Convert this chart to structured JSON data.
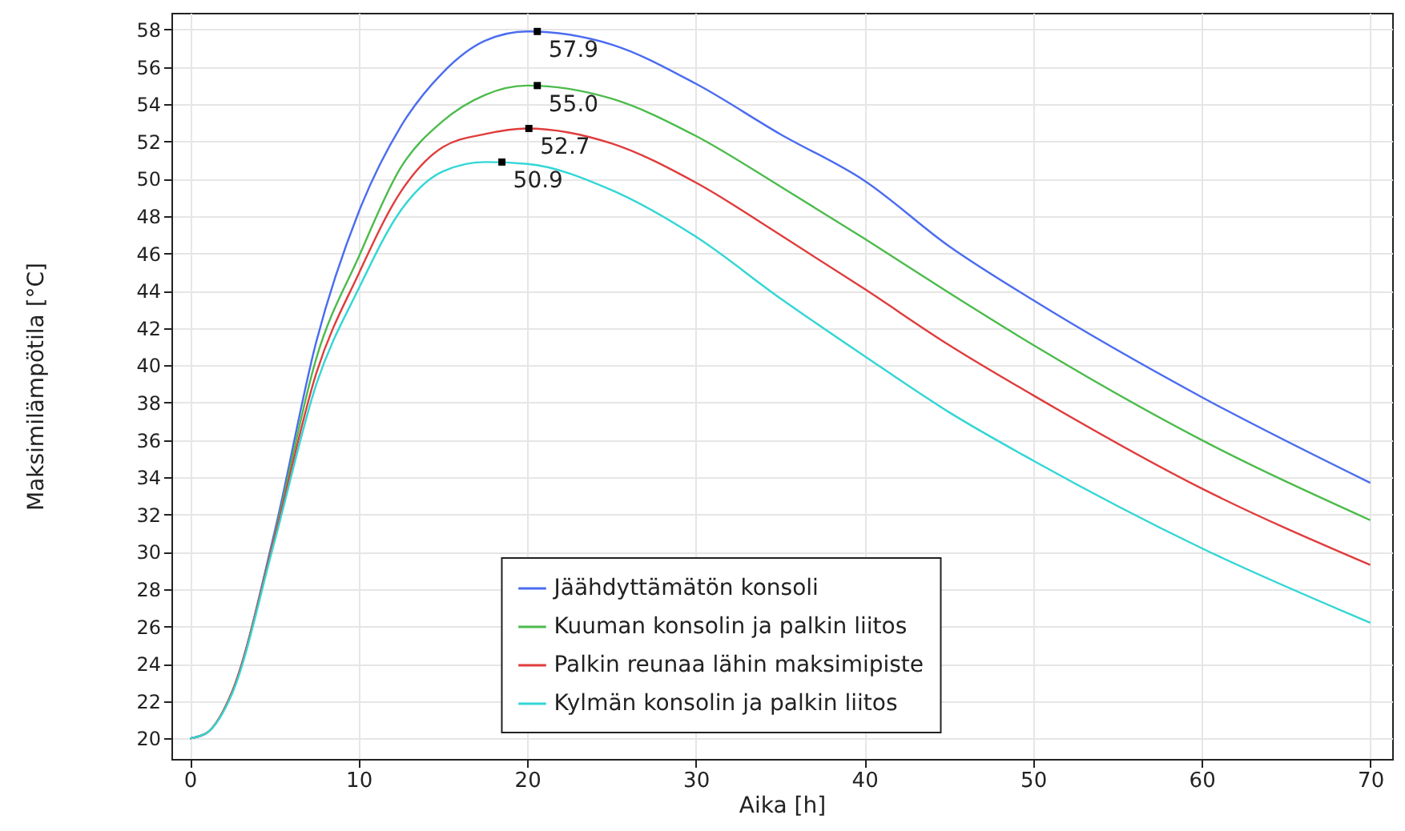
{
  "chart_data": {
    "type": "line",
    "xlabel": "Aika [h]",
    "ylabel": "Maksimilämpötila [°C]",
    "x": [
      0,
      1,
      2.5,
      5,
      7.5,
      10,
      12.5,
      15,
      17.5,
      20,
      25,
      30,
      35,
      40,
      45,
      50,
      60,
      70
    ],
    "series": [
      {
        "name": "Jäähdyttämätön konsoli",
        "color": "#4a6cf0",
        "values": [
          20,
          20.3,
          22.5,
          31.0,
          41.3,
          48.2,
          52.8,
          55.7,
          57.4,
          57.9,
          57.2,
          55.1,
          52.4,
          49.9,
          46.4,
          43.5,
          38.3,
          33.7
        ]
      },
      {
        "name": "Kuuman konsolin ja palkin liitos",
        "color": "#4cbb4c",
        "values": [
          20,
          20.3,
          22.5,
          30.8,
          40.4,
          45.8,
          50.6,
          53.1,
          54.5,
          55.0,
          54.3,
          52.3,
          49.6,
          46.8,
          43.9,
          41.1,
          36.0,
          31.7
        ]
      },
      {
        "name": "Palkin reunaa lähin maksimipiste",
        "color": "#e03c3c",
        "values": [
          20,
          20.3,
          22.5,
          30.7,
          39.6,
          44.9,
          49.3,
          51.7,
          52.4,
          52.7,
          51.9,
          49.8,
          47.0,
          44.1,
          41.1,
          38.4,
          33.4,
          29.3
        ]
      },
      {
        "name": "Kylmän konsolin ja palkin liitos",
        "color": "#33d6d6",
        "values": [
          20,
          20.3,
          22.4,
          30.5,
          39.0,
          44.1,
          48.3,
          50.4,
          50.9,
          50.8,
          49.4,
          46.9,
          43.6,
          40.5,
          37.5,
          34.9,
          30.2,
          26.2
        ]
      }
    ],
    "annotations": [
      {
        "text": "57.9",
        "x": 20.6,
        "y": 57.9
      },
      {
        "text": "55.0",
        "x": 20.6,
        "y": 55.0
      },
      {
        "text": "52.7",
        "x": 20.1,
        "y": 52.7
      },
      {
        "text": "50.9",
        "x": 18.5,
        "y": 50.9
      }
    ],
    "xlim": [
      -1.1,
      71.3
    ],
    "ylim": [
      18.9,
      58.9
    ],
    "xticks": [
      0,
      10,
      20,
      30,
      40,
      50,
      60,
      70
    ],
    "yticks": [
      20,
      22,
      24,
      26,
      28,
      30,
      32,
      34,
      36,
      38,
      40,
      42,
      44,
      46,
      48,
      50,
      52,
      54,
      56,
      58
    ],
    "grid": true,
    "legend": "bottom",
    "marker": "none",
    "line_style": "solid"
  }
}
